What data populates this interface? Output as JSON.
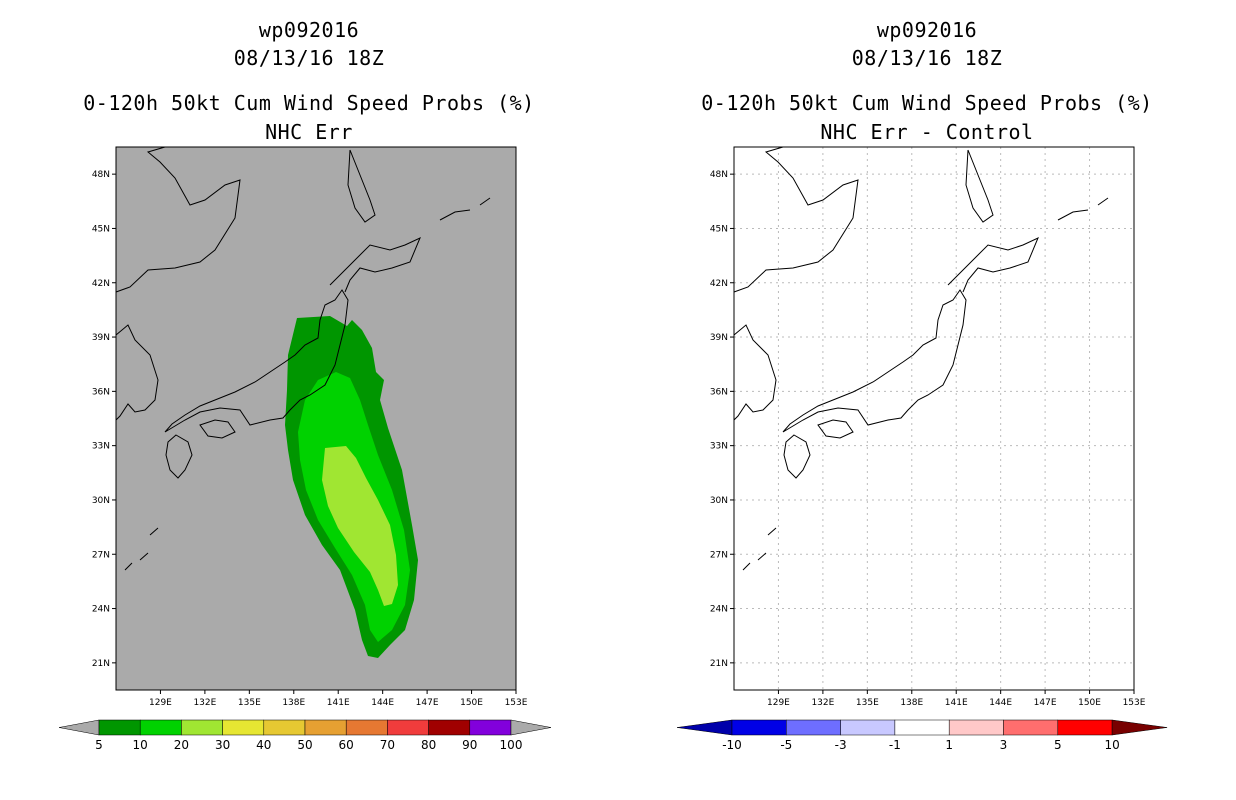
{
  "left_panel": {
    "storm_id": "wp092016",
    "datetime": "08/13/16 18Z",
    "product": "0-120h 50kt Cum Wind Speed Probs (%)",
    "subtitle": "NHC Err",
    "background_color": "#aaaaaa",
    "probability_bands": [
      {
        "min_pct": 5,
        "color": "#009600"
      },
      {
        "min_pct": 10,
        "color": "#00d200"
      },
      {
        "min_pct": 20,
        "color": "#a0e632"
      }
    ],
    "colorbar": {
      "labels": [
        "5",
        "10",
        "20",
        "30",
        "40",
        "50",
        "60",
        "70",
        "80",
        "90",
        "100"
      ],
      "colors": [
        "#009600",
        "#00d200",
        "#a0e632",
        "#e6e632",
        "#e6c832",
        "#e6a032",
        "#e67832",
        "#f03c3c",
        "#a00000",
        "#8200dc"
      ],
      "end_color": "#aaaaaa"
    }
  },
  "right_panel": {
    "storm_id": "wp092016",
    "datetime": "08/13/16 18Z",
    "product": "0-120h 50kt Cum Wind Speed Probs (%)",
    "subtitle": "NHC Err - Control",
    "background_color": "#ffffff",
    "colorbar": {
      "labels": [
        "-10",
        "-5",
        "-3",
        "-1",
        "1",
        "3",
        "5",
        "10"
      ],
      "colors": [
        "#0000e6",
        "#6e6eff",
        "#c8c8ff",
        "#ffffff",
        "#ffc8c8",
        "#ff6e6e",
        "#ff0000"
      ],
      "low_end_color": "#0000aa",
      "high_end_color": "#780000"
    }
  },
  "axes": {
    "lat_labels": [
      "48N",
      "45N",
      "42N",
      "39N",
      "36N",
      "33N",
      "30N",
      "27N",
      "24N",
      "21N"
    ],
    "lon_labels": [
      "129E",
      "132E",
      "135E",
      "138E",
      "141E",
      "144E",
      "147E",
      "150E",
      "153E"
    ],
    "lat_range": [
      19.5,
      49.5
    ],
    "lon_range": [
      126.0,
      153.0
    ]
  }
}
